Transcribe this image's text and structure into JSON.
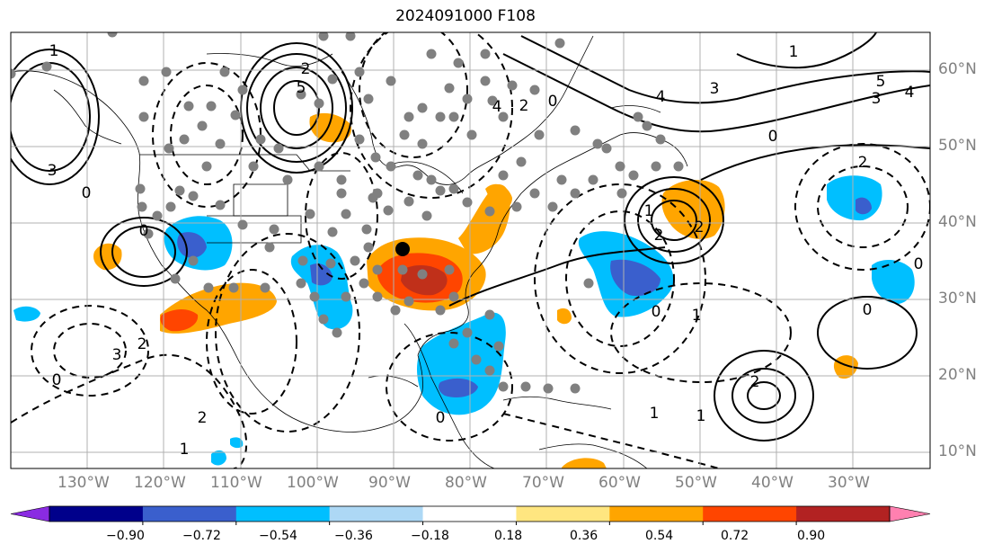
{
  "title": "2024091000 F108",
  "lon_labels": [
    "130°W",
    "120°W",
    "110°W",
    "100°W",
    "90°W",
    "80°W",
    "70°W",
    "60°W",
    "50°W",
    "40°W",
    "30°W"
  ],
  "lat_labels": [
    "60°N",
    "50°N",
    "40°N",
    "30°N",
    "20°N",
    "10°N"
  ],
  "colorbar": {
    "labels": [
      "−0.90",
      "−0.72",
      "−0.54",
      "−0.36",
      "−0.18",
      "0.18",
      "0.36",
      "0.54",
      "0.72",
      "0.90"
    ],
    "colors": [
      "#8a2be2",
      "#00008b",
      "#3a5fcd",
      "#00bfff",
      "#add8f5",
      "#ffffff",
      "#ffe680",
      "#ffa500",
      "#ff4500",
      "#b22222",
      "#ff80b0"
    ]
  },
  "contour_labels": [
    "3",
    "5",
    "2",
    "0",
    "1",
    "4",
    "3",
    "4",
    "2",
    "0",
    "1",
    "5",
    "3",
    "4",
    "2",
    "0",
    "1",
    "2",
    "3",
    "0",
    "2",
    "0",
    "1",
    "2",
    "1",
    "0",
    "0",
    "2",
    "1",
    "2",
    "0",
    "1",
    "0"
  ],
  "colors": {
    "contour": "#000000",
    "grid": "#b0b0b0",
    "station": "#808080",
    "marker": "#000000",
    "orange": "#ffa500",
    "red": "#ff4500",
    "darkred": "#b22222",
    "lightblue": "#00bfff",
    "blue": "#3a5fcd"
  }
}
